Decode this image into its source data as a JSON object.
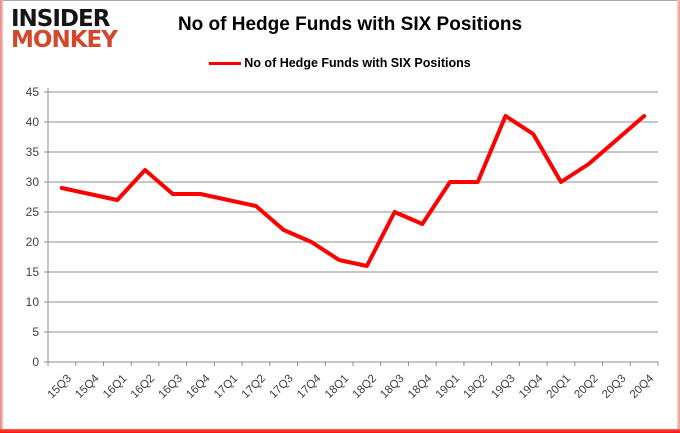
{
  "logo": {
    "line1": "INSIDER",
    "line2": "MONKEY"
  },
  "title": "No of Hedge Funds with SIX Positions",
  "legend": {
    "label": "No of Hedge Funds with SIX Positions"
  },
  "colors": {
    "line": "#ff0000",
    "grid": "#8c8c8c",
    "axis": "#8c8c8c",
    "tick_label": "#3f3f3f",
    "logo_black": "#151515",
    "logo_red": "#d3472b"
  },
  "chart_data": {
    "type": "line",
    "title": "No of Hedge Funds with SIX Positions",
    "xlabel": "",
    "ylabel": "",
    "ylim": [
      0,
      45
    ],
    "ytick_step": 5,
    "grid": true,
    "legend_position": "top-center",
    "categories": [
      "15Q3",
      "15Q4",
      "16Q1",
      "16Q2",
      "16Q3",
      "16Q4",
      "17Q1",
      "17Q2",
      "17Q3",
      "17Q4",
      "18Q1",
      "18Q2",
      "18Q3",
      "18Q4",
      "19Q1",
      "19Q2",
      "19Q3",
      "19Q4",
      "20Q1",
      "20Q2",
      "20Q3",
      "20Q4"
    ],
    "series": [
      {
        "name": "No of Hedge Funds with SIX Positions",
        "color": "#ff0000",
        "values": [
          29,
          28,
          27,
          32,
          28,
          28,
          27,
          26,
          22,
          20,
          17,
          16,
          25,
          23,
          30,
          30,
          41,
          38,
          30,
          33,
          37,
          41
        ]
      }
    ]
  }
}
